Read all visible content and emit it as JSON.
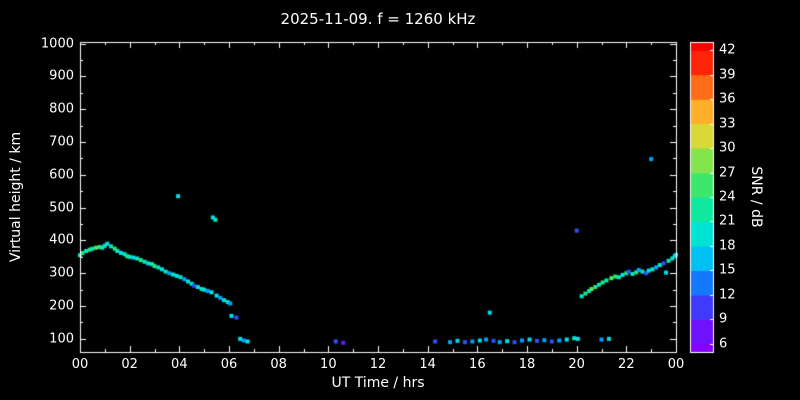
{
  "title": "2025-11-09. f = 1260 kHz",
  "colors": {
    "background": "#000000",
    "frame": "#ffffff",
    "text": "#ffffff"
  },
  "x_axis": {
    "label": "UT Time / hrs",
    "tick_labels": [
      "00",
      "02",
      "04",
      "06",
      "08",
      "10",
      "12",
      "14",
      "16",
      "18",
      "20",
      "22",
      "00"
    ],
    "tick_values": [
      0,
      2,
      4,
      6,
      8,
      10,
      12,
      14,
      16,
      18,
      20,
      22,
      24
    ],
    "range": [
      0,
      24
    ]
  },
  "y_axis": {
    "label": "Virtual height / km",
    "tick_values": [
      1000,
      900,
      800,
      700,
      600,
      500,
      400,
      300,
      200,
      100
    ],
    "range": [
      60,
      1005
    ]
  },
  "colorbar": {
    "label": "SNR / dB",
    "tick_values": [
      42,
      39,
      36,
      33,
      30,
      27,
      24,
      21,
      18,
      15,
      12,
      9,
      6
    ],
    "range": [
      5,
      43
    ],
    "stops": [
      {
        "value": 6,
        "color": "#8800ff"
      },
      {
        "value": 9,
        "color": "#5522ff"
      },
      {
        "value": 12,
        "color": "#2a52ff"
      },
      {
        "value": 15,
        "color": "#00a0ff"
      },
      {
        "value": 18,
        "color": "#00e0e8"
      },
      {
        "value": 21,
        "color": "#00e8c0"
      },
      {
        "value": 24,
        "color": "#20e880"
      },
      {
        "value": 27,
        "color": "#58e858"
      },
      {
        "value": 30,
        "color": "#b0e040"
      },
      {
        "value": 33,
        "color": "#ffd030"
      },
      {
        "value": 36,
        "color": "#ff9020"
      },
      {
        "value": 39,
        "color": "#ff4810"
      },
      {
        "value": 42,
        "color": "#ff0000"
      }
    ]
  },
  "chart_data": {
    "type": "scatter",
    "title": "2025-11-09. f = 1260 kHz",
    "xlabel": "UT Time / hrs",
    "ylabel": "Virtual height / km",
    "color_label": "SNR / dB",
    "xlim": [
      0,
      24
    ],
    "ylim": [
      60,
      1005
    ],
    "clim": [
      6,
      42
    ],
    "point_format": [
      "ut_hours",
      "virtual_height_km",
      "snr_db"
    ],
    "points": [
      [
        0.0,
        355,
        21
      ],
      [
        0.1,
        362,
        24
      ],
      [
        0.25,
        368,
        21
      ],
      [
        0.4,
        372,
        24
      ],
      [
        0.5,
        375,
        21
      ],
      [
        0.65,
        378,
        27
      ],
      [
        0.8,
        380,
        24
      ],
      [
        0.9,
        378,
        21
      ],
      [
        1.0,
        384,
        21
      ],
      [
        1.1,
        390,
        18
      ],
      [
        1.25,
        382,
        21
      ],
      [
        1.4,
        375,
        24
      ],
      [
        1.5,
        368,
        21
      ],
      [
        1.65,
        362,
        18
      ],
      [
        1.8,
        358,
        21
      ],
      [
        1.9,
        352,
        24
      ],
      [
        2.0,
        350,
        21
      ],
      [
        2.15,
        348,
        18
      ],
      [
        2.3,
        345,
        21
      ],
      [
        2.45,
        340,
        24
      ],
      [
        2.6,
        335,
        21
      ],
      [
        2.75,
        330,
        18
      ],
      [
        2.9,
        328,
        21
      ],
      [
        3.0,
        322,
        24
      ],
      [
        3.15,
        318,
        21
      ],
      [
        3.3,
        312,
        18
      ],
      [
        3.45,
        305,
        21
      ],
      [
        3.6,
        300,
        15
      ],
      [
        3.75,
        296,
        21
      ],
      [
        3.9,
        292,
        18
      ],
      [
        3.95,
        535,
        18
      ],
      [
        4.05,
        288,
        21
      ],
      [
        4.2,
        282,
        15
      ],
      [
        4.35,
        275,
        18
      ],
      [
        4.5,
        268,
        21
      ],
      [
        4.6,
        262,
        12
      ],
      [
        4.75,
        258,
        18
      ],
      [
        4.9,
        252,
        21
      ],
      [
        5.0,
        250,
        18
      ],
      [
        5.15,
        246,
        15
      ],
      [
        5.3,
        242,
        18
      ],
      [
        5.35,
        470,
        18
      ],
      [
        5.45,
        463,
        21
      ],
      [
        5.5,
        232,
        18
      ],
      [
        5.65,
        225,
        15
      ],
      [
        5.8,
        218,
        18
      ],
      [
        5.95,
        212,
        21
      ],
      [
        6.05,
        208,
        15
      ],
      [
        6.1,
        170,
        18
      ],
      [
        6.3,
        165,
        12
      ],
      [
        6.45,
        100,
        18
      ],
      [
        6.6,
        95,
        15
      ],
      [
        6.75,
        92,
        18
      ],
      [
        10.3,
        92,
        12
      ],
      [
        10.6,
        88,
        9
      ],
      [
        14.3,
        92,
        12
      ],
      [
        14.9,
        90,
        15
      ],
      [
        15.2,
        94,
        18
      ],
      [
        15.5,
        90,
        12
      ],
      [
        15.8,
        92,
        15
      ],
      [
        16.1,
        95,
        18
      ],
      [
        16.35,
        98,
        15
      ],
      [
        16.5,
        180,
        18
      ],
      [
        16.65,
        94,
        12
      ],
      [
        16.9,
        90,
        15
      ],
      [
        17.2,
        93,
        18
      ],
      [
        17.5,
        90,
        12
      ],
      [
        17.8,
        95,
        15
      ],
      [
        18.1,
        98,
        18
      ],
      [
        18.4,
        94,
        12
      ],
      [
        18.7,
        96,
        15
      ],
      [
        19.0,
        92,
        12
      ],
      [
        19.3,
        95,
        15
      ],
      [
        19.6,
        98,
        18
      ],
      [
        19.9,
        102,
        21
      ],
      [
        20.0,
        430,
        12
      ],
      [
        20.05,
        100,
        18
      ],
      [
        20.2,
        230,
        21
      ],
      [
        20.35,
        238,
        24
      ],
      [
        20.5,
        246,
        21
      ],
      [
        20.6,
        252,
        27
      ],
      [
        20.75,
        258,
        24
      ],
      [
        20.9,
        265,
        21
      ],
      [
        21.0,
        98,
        15
      ],
      [
        21.05,
        272,
        24
      ],
      [
        21.2,
        278,
        21
      ],
      [
        21.3,
        100,
        18
      ],
      [
        21.4,
        285,
        27
      ],
      [
        21.55,
        290,
        24
      ],
      [
        21.7,
        288,
        21
      ],
      [
        21.85,
        295,
        18
      ],
      [
        22.0,
        300,
        24
      ],
      [
        22.1,
        305,
        12
      ],
      [
        22.25,
        298,
        21
      ],
      [
        22.4,
        303,
        24
      ],
      [
        22.5,
        310,
        15
      ],
      [
        22.65,
        305,
        21
      ],
      [
        22.8,
        300,
        12
      ],
      [
        22.9,
        308,
        18
      ],
      [
        23.0,
        648,
        15
      ],
      [
        23.05,
        312,
        21
      ],
      [
        23.2,
        318,
        15
      ],
      [
        23.35,
        325,
        21
      ],
      [
        23.5,
        330,
        12
      ],
      [
        23.6,
        302,
        18
      ],
      [
        23.7,
        338,
        21
      ],
      [
        23.85,
        345,
        18
      ],
      [
        23.95,
        352,
        21
      ],
      [
        24.0,
        356,
        18
      ]
    ]
  }
}
